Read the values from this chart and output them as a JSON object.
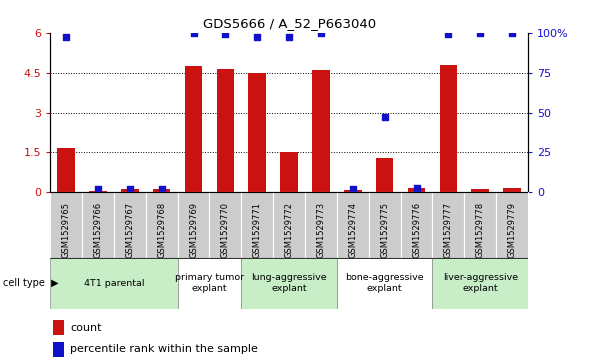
{
  "title": "GDS5666 / A_52_P663040",
  "samples": [
    "GSM1529765",
    "GSM1529766",
    "GSM1529767",
    "GSM1529768",
    "GSM1529769",
    "GSM1529770",
    "GSM1529771",
    "GSM1529772",
    "GSM1529773",
    "GSM1529774",
    "GSM1529775",
    "GSM1529776",
    "GSM1529777",
    "GSM1529778",
    "GSM1529779"
  ],
  "red_values": [
    1.65,
    0.07,
    0.12,
    0.12,
    4.75,
    4.65,
    4.5,
    1.5,
    4.6,
    0.08,
    1.3,
    0.18,
    4.8,
    0.12,
    0.15
  ],
  "blue_values_pct": [
    97,
    2,
    2,
    2,
    100,
    99,
    97,
    97,
    100,
    2,
    47,
    3,
    99,
    100,
    100
  ],
  "cell_groups": [
    {
      "label": "4T1 parental",
      "start": 0,
      "end": 3,
      "color": "#c8eec8"
    },
    {
      "label": "primary tumor\nexplant",
      "start": 4,
      "end": 5,
      "color": "#ffffff"
    },
    {
      "label": "lung-aggressive\nexplant",
      "start": 6,
      "end": 8,
      "color": "#c8eec8"
    },
    {
      "label": "bone-aggressive\nexplant",
      "start": 9,
      "end": 11,
      "color": "#ffffff"
    },
    {
      "label": "liver-aggressive\nexplant",
      "start": 12,
      "end": 14,
      "color": "#c8eec8"
    }
  ],
  "ylim_left": [
    0,
    6
  ],
  "ylim_right": [
    0,
    100
  ],
  "yticks_left": [
    0,
    1.5,
    3.0,
    4.5,
    6.0
  ],
  "ytick_labels_left": [
    "0",
    "1.5",
    "3",
    "4.5",
    "6"
  ],
  "yticks_right": [
    0,
    25,
    50,
    75,
    100
  ],
  "ytick_labels_right": [
    "0",
    "25",
    "50",
    "75",
    "100%"
  ],
  "red_color": "#cc1111",
  "blue_color": "#1111cc",
  "bar_width": 0.55,
  "marker_size": 5,
  "sample_bg_color": "#cccccc",
  "legend_count": "count",
  "legend_percentile": "percentile rank within the sample",
  "cell_type_label": "cell type"
}
